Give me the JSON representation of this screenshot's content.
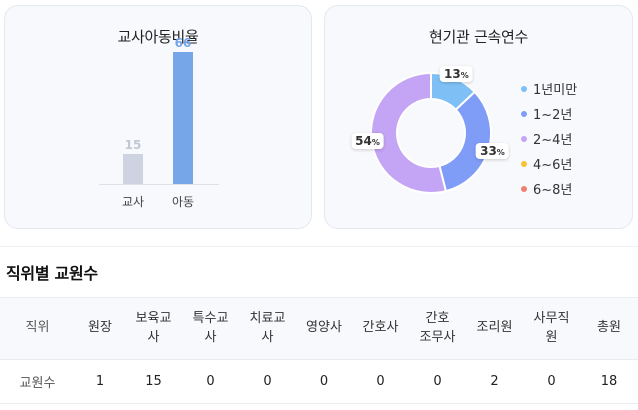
{
  "ratio_card": {
    "title": "교사아동비율",
    "chart_data": {
      "type": "bar",
      "categories": [
        "교사",
        "아동"
      ],
      "values": [
        15,
        66
      ],
      "value_labels": [
        "15",
        "66"
      ],
      "colors": [
        "#cdd3e1",
        "#76a6e8"
      ],
      "label_colors": [
        "#c2c8d4",
        "#76a6e8"
      ],
      "ylim": [
        0,
        66
      ]
    }
  },
  "tenure_card": {
    "title": "현기관 근속연수",
    "chart_data": {
      "type": "pie",
      "categories": [
        "1년미만",
        "1~2년",
        "2~4년",
        "4~6년",
        "6~8년"
      ],
      "values": [
        13,
        33,
        54,
        0,
        0
      ],
      "percent_labels": [
        "13",
        "33",
        "54",
        "",
        ""
      ],
      "percent_sign": "%",
      "colors": [
        "#7ec0f5",
        "#7f9cf7",
        "#c4a4f4",
        "#f7c236",
        "#f07f72"
      ]
    }
  },
  "staff_section": {
    "title": "직위별 교원수",
    "headers": [
      [
        "직위"
      ],
      [
        "원장"
      ],
      [
        "보육교",
        "사"
      ],
      [
        "특수교",
        "사"
      ],
      [
        "치료교",
        "사"
      ],
      [
        "영양사"
      ],
      [
        "간호사"
      ],
      [
        "간호",
        "조무사"
      ],
      [
        "조리원"
      ],
      [
        "사무직",
        "원"
      ],
      [
        "총원"
      ]
    ],
    "row": [
      "교원수",
      "1",
      "15",
      "0",
      "0",
      "0",
      "0",
      "0",
      "2",
      "0",
      "18"
    ]
  }
}
